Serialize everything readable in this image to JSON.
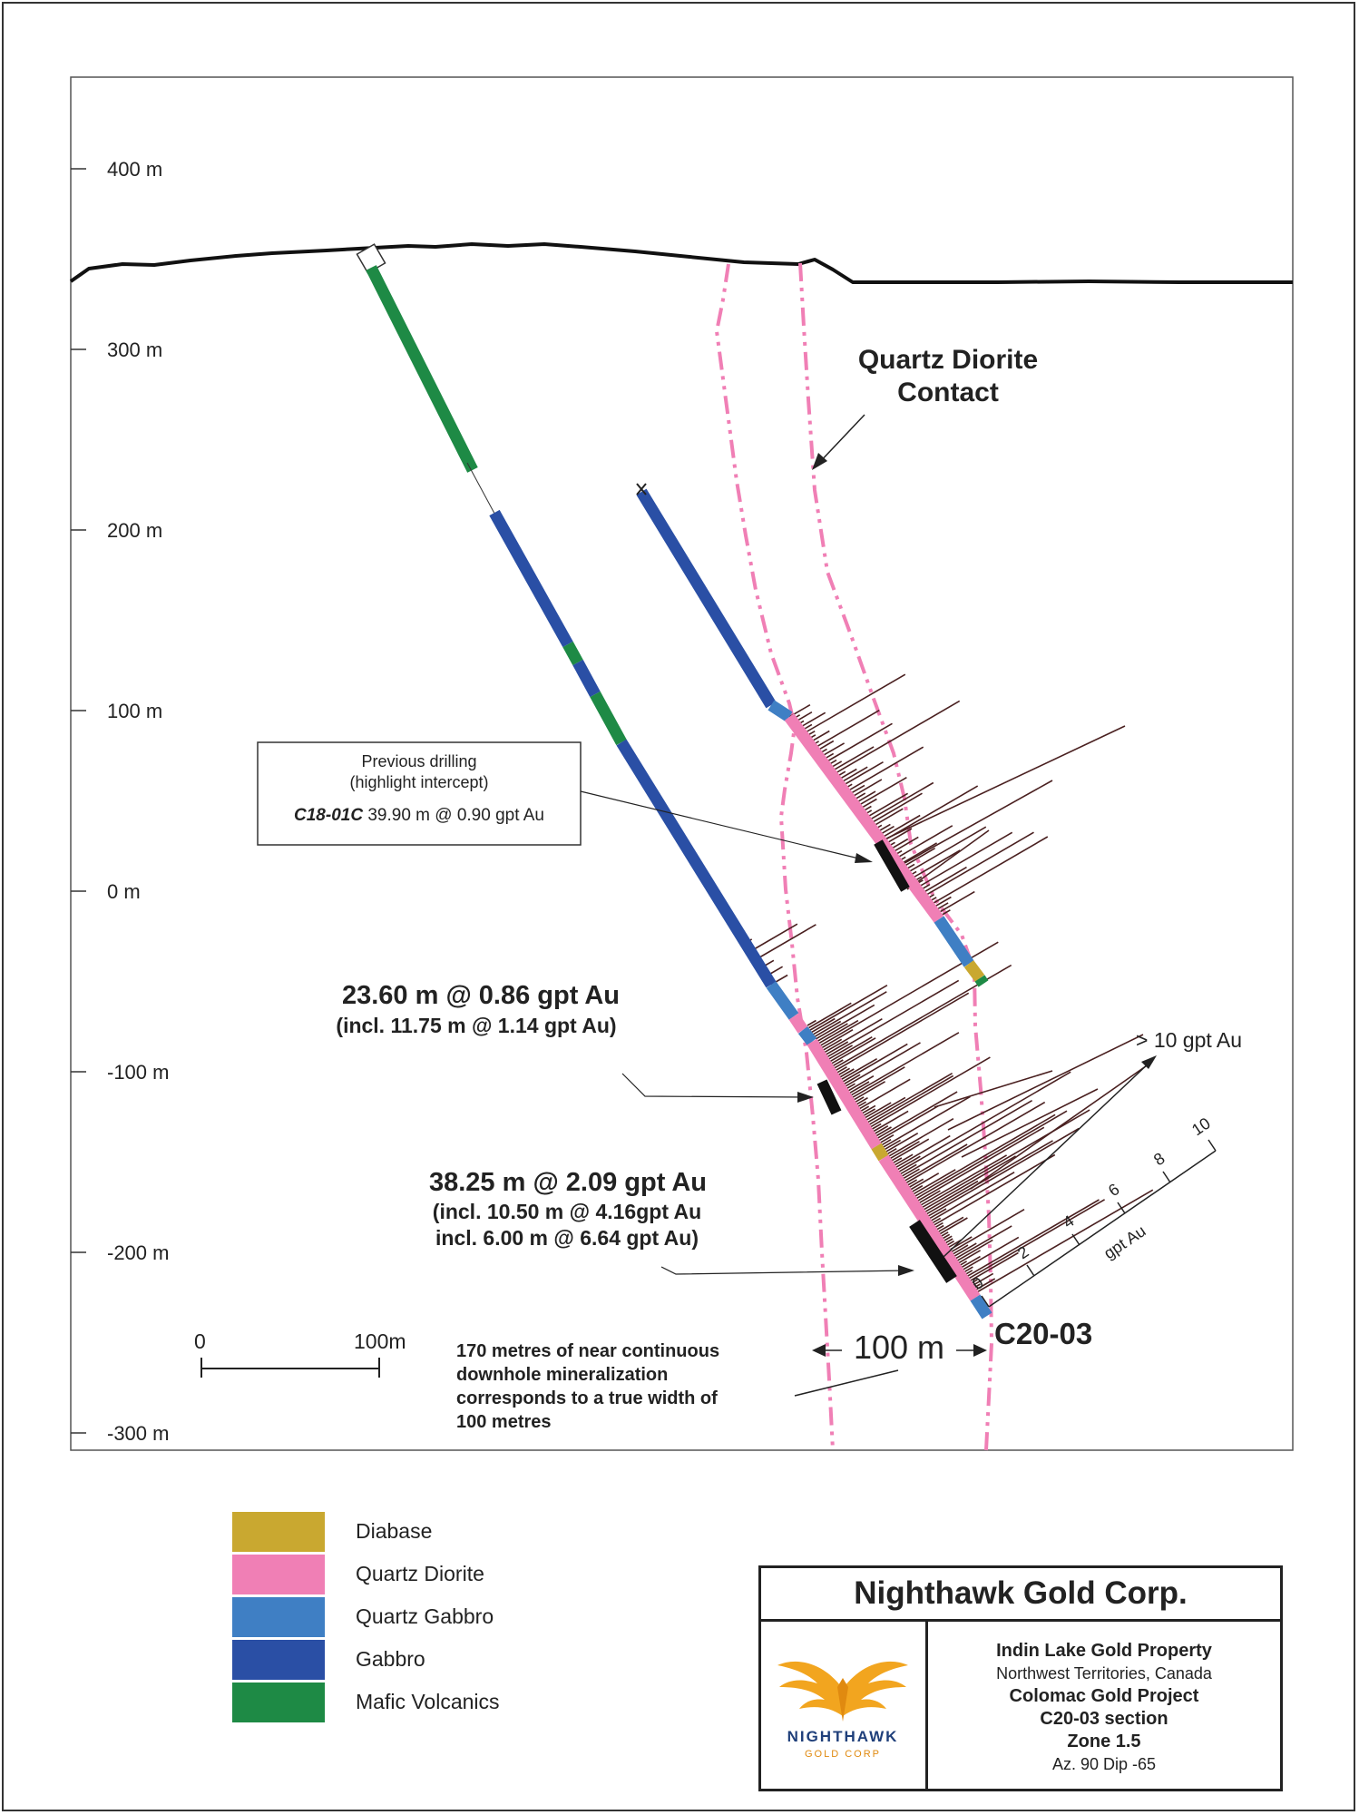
{
  "section": {
    "elevation_labels": [
      "400 m",
      "300 m",
      "200 m",
      "100 m",
      "0 m",
      "-100 m",
      "-200 m",
      "-300 m"
    ],
    "contact_label": [
      "Quartz Diorite",
      "Contact"
    ],
    "previous_drilling": {
      "line1": "Previous drilling",
      "line2": "(highlight intercept)",
      "hole": "C18-01C",
      "intercept": "39.90 m @ 0.90 gpt Au"
    },
    "intercept_1": {
      "main": "23.60 m @ 0.86 gpt Au",
      "incl": "(incl. 11.75 m @ 1.14 gpt Au)"
    },
    "intercept_2": {
      "main": "38.25 m @ 2.09 gpt Au",
      "incl1": "(incl. 10.50 m @ 4.16gpt Au",
      "incl2": "incl. 6.00 m @ 6.64 gpt Au)"
    },
    "over_scale_label": "> 10 gpt Au",
    "histogram_scale": {
      "ticks": [
        "0",
        "2",
        "4",
        "6",
        "8",
        "10"
      ],
      "unit": "gpt Au"
    },
    "hole_label": "C20-03",
    "width_label": "100 m",
    "scale_bar": {
      "start": "0",
      "end": "100m"
    },
    "mineralization_note": [
      "170 metres of near continuous",
      "downhole mineralization",
      "corresponds to a true width of",
      "100 metres"
    ]
  },
  "colors": {
    "diabase": "#c9a830",
    "quartz_diorite": "#f07fb5",
    "quartz_gabbro": "#3f7fc4",
    "gabbro": "#2a4fa5",
    "mafic_volcanics": "#1e8a45",
    "assay_bars": "#4a2020",
    "contact_line": "#f07fb5"
  },
  "legend": [
    {
      "label": "Diabase",
      "color": "#c9a830"
    },
    {
      "label": "Quartz Diorite",
      "color": "#f07fb5"
    },
    {
      "label": "Quartz Gabbro",
      "color": "#3f7fc4"
    },
    {
      "label": "Gabbro",
      "color": "#2a4fa5"
    },
    {
      "label": "Mafic Volcanics",
      "color": "#1e8a45"
    }
  ],
  "title_block": {
    "company": "Nighthawk Gold Corp.",
    "logo_text": "NIGHTHAWK",
    "logo_subtext": "GOLD CORP",
    "property": "Indin Lake Gold Property",
    "location": "Northwest Territories, Canada",
    "project": "Colomac Gold Project",
    "section": "C20-03 section",
    "zone": "Zone 1.5",
    "orientation": "Az. 90 Dip -65"
  }
}
